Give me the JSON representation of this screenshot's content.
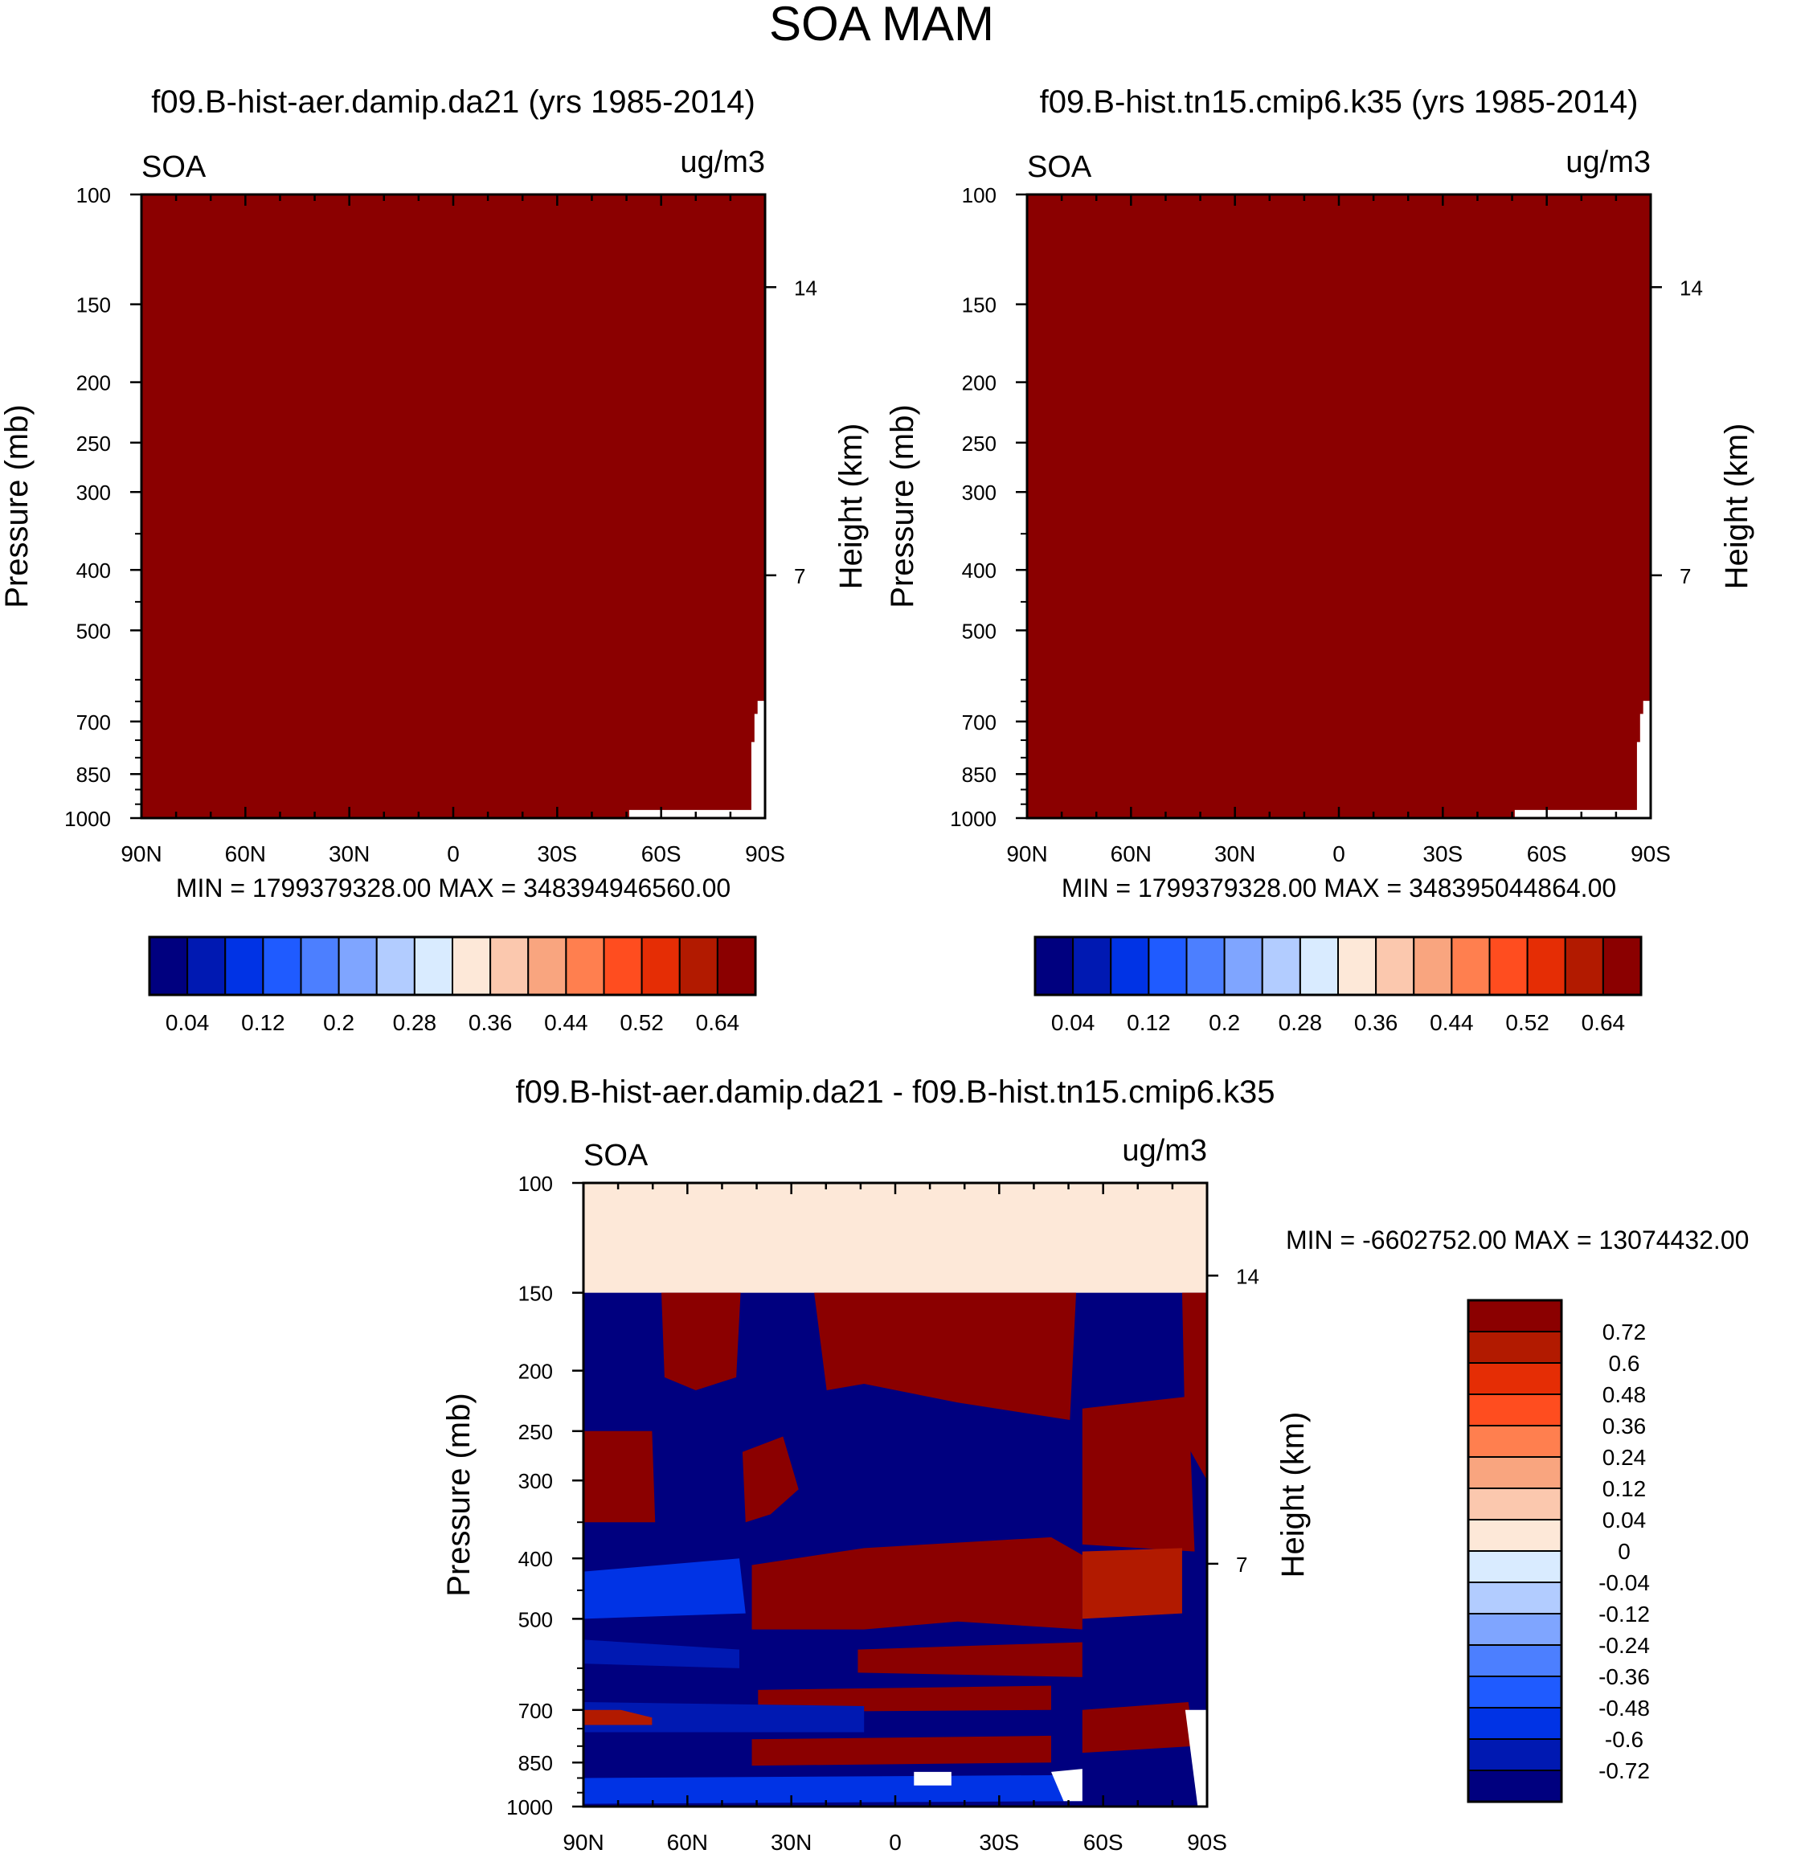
{
  "figure": {
    "title": "SOA MAM"
  },
  "chart_data": [
    {
      "type": "heatmap",
      "title": "f09.B-hist-aer.damip.da21 (yrs 1985-2014)",
      "left_label": "SOA",
      "right_label": "ug/m3",
      "ylabel": "Pressure (mb)",
      "ylabel_right": "Height (km)",
      "xticks": [
        "90N",
        "60N",
        "30N",
        "0",
        "30S",
        "60S",
        "90S"
      ],
      "yticks": [
        "100",
        "150",
        "200",
        "250",
        "300",
        "400",
        "500",
        "700",
        "850",
        "1000"
      ],
      "yticks_right": [
        "14",
        "7"
      ],
      "stats": "MIN = 1799379328.00   MAX = 348394946560.00",
      "colorbar_labels": [
        "0.04",
        "0.12",
        "0.2",
        "0.28",
        "0.36",
        "0.44",
        "0.52",
        "0.64"
      ],
      "field_description": "field saturated at top color bin everywhere",
      "fill_color": "#8b0000"
    },
    {
      "type": "heatmap",
      "title": "f09.B-hist.tn15.cmip6.k35 (yrs 1985-2014)",
      "left_label": "SOA",
      "right_label": "ug/m3",
      "ylabel": "Pressure (mb)",
      "ylabel_right": "Height (km)",
      "xticks": [
        "90N",
        "60N",
        "30N",
        "0",
        "30S",
        "60S",
        "90S"
      ],
      "yticks": [
        "100",
        "150",
        "200",
        "250",
        "300",
        "400",
        "500",
        "700",
        "850",
        "1000"
      ],
      "yticks_right": [
        "14",
        "7"
      ],
      "stats": "MIN = 1799379328.00   MAX = 348395044864.00",
      "colorbar_labels": [
        "0.04",
        "0.12",
        "0.2",
        "0.28",
        "0.36",
        "0.44",
        "0.52",
        "0.64"
      ],
      "fill_color": "#8b0000"
    },
    {
      "type": "heatmap",
      "title": "f09.B-hist-aer.damip.da21 - f09.B-hist.tn15.cmip6.k35",
      "left_label": "SOA",
      "right_label": "ug/m3",
      "ylabel": "Pressure (mb)",
      "ylabel_right": "Height (km)",
      "xticks": [
        "90N",
        "60N",
        "30N",
        "0",
        "30S",
        "60S",
        "90S"
      ],
      "yticks": [
        "100",
        "150",
        "200",
        "250",
        "300",
        "400",
        "500",
        "700",
        "850",
        "1000"
      ],
      "yticks_right": [
        "14",
        "7"
      ],
      "stats": "MIN = -6602752.00   MAX = 13074432.00",
      "colorbar_labels": [
        "0.72",
        "0.6",
        "0.48",
        "0.36",
        "0.24",
        "0.12",
        "0.04",
        "0",
        "-0.04",
        "-0.12",
        "-0.24",
        "-0.36",
        "-0.48",
        "-0.6",
        "-0.72"
      ]
    }
  ],
  "colors": {
    "seq_colorbar": [
      "#00007f",
      "#0019b2",
      "#0033e5",
      "#1f5bff",
      "#4c7fff",
      "#7fa5ff",
      "#b2ccff",
      "#d9ebff",
      "#fde8d8",
      "#fbc8ae",
      "#f9a57f",
      "#ff7f4f",
      "#ff4d1f",
      "#e52d05",
      "#b21a00",
      "#8b0000"
    ],
    "div_colorbar": [
      "#8b0000",
      "#b21a00",
      "#e52d05",
      "#ff4d1f",
      "#ff7f4f",
      "#f9a57f",
      "#fbc8ae",
      "#fde8d8",
      "#d9ebff",
      "#b2ccff",
      "#7fa5ff",
      "#4c7fff",
      "#1f5bff",
      "#0033e5",
      "#0019b2",
      "#00007f"
    ],
    "saturated_red": "#8b0000",
    "deep_blue": "#00007f",
    "near_zero_pos": "#fde8d8"
  }
}
